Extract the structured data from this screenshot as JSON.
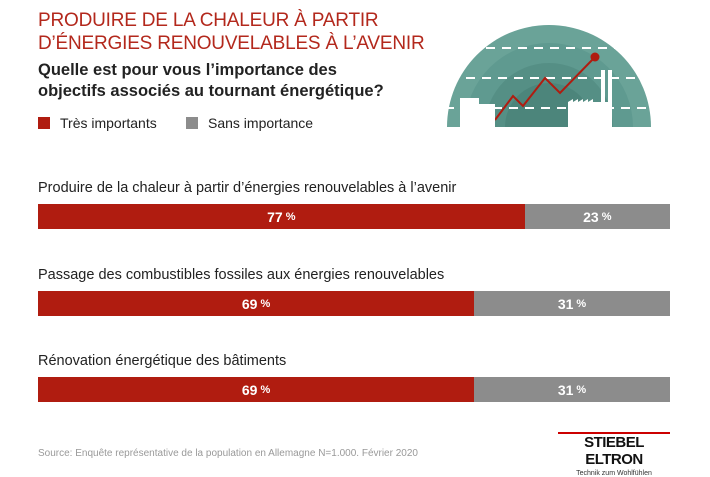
{
  "title": [
    "PRODUIRE DE LA CHALEUR À PARTIR",
    "D’ÉNERGIES RENOUVELABLES À L’AVENIR"
  ],
  "subtitle": [
    "Quelle est pour vous l’importance des",
    "objectifs associés au tournant énergétique?"
  ],
  "colors": {
    "title": "#b3281c",
    "very_important": "#b01c10",
    "unimportant": "#8c8c8c",
    "illustration": "#5f9a90"
  },
  "illustration": "renewable-energy-arc-with-factories-and-rising-chart-icon",
  "chart_data": {
    "type": "bar",
    "orientation": "horizontal",
    "stacked": true,
    "unit": "%",
    "xlim": [
      0,
      100
    ],
    "grid": false,
    "legend_placement": "top-left",
    "categories": [
      "Produire de la chaleur à partir d’énergies renouvelables à l’avenir",
      "Passage des combustibles fossiles aux énergies renouvelables",
      "Rénovation énergétique des bâtiments"
    ],
    "series": [
      {
        "name": "Très importants",
        "values": [
          77,
          69,
          69
        ]
      },
      {
        "name": "Sans importance",
        "values": [
          23,
          31,
          31
        ]
      }
    ]
  },
  "source": "Source: Enquête représentative de la population en Allemagne N=1.000. Février 2020",
  "logo": {
    "name": "STIEBEL ELTRON",
    "slogan": "Technik zum Wohlfühlen"
  }
}
